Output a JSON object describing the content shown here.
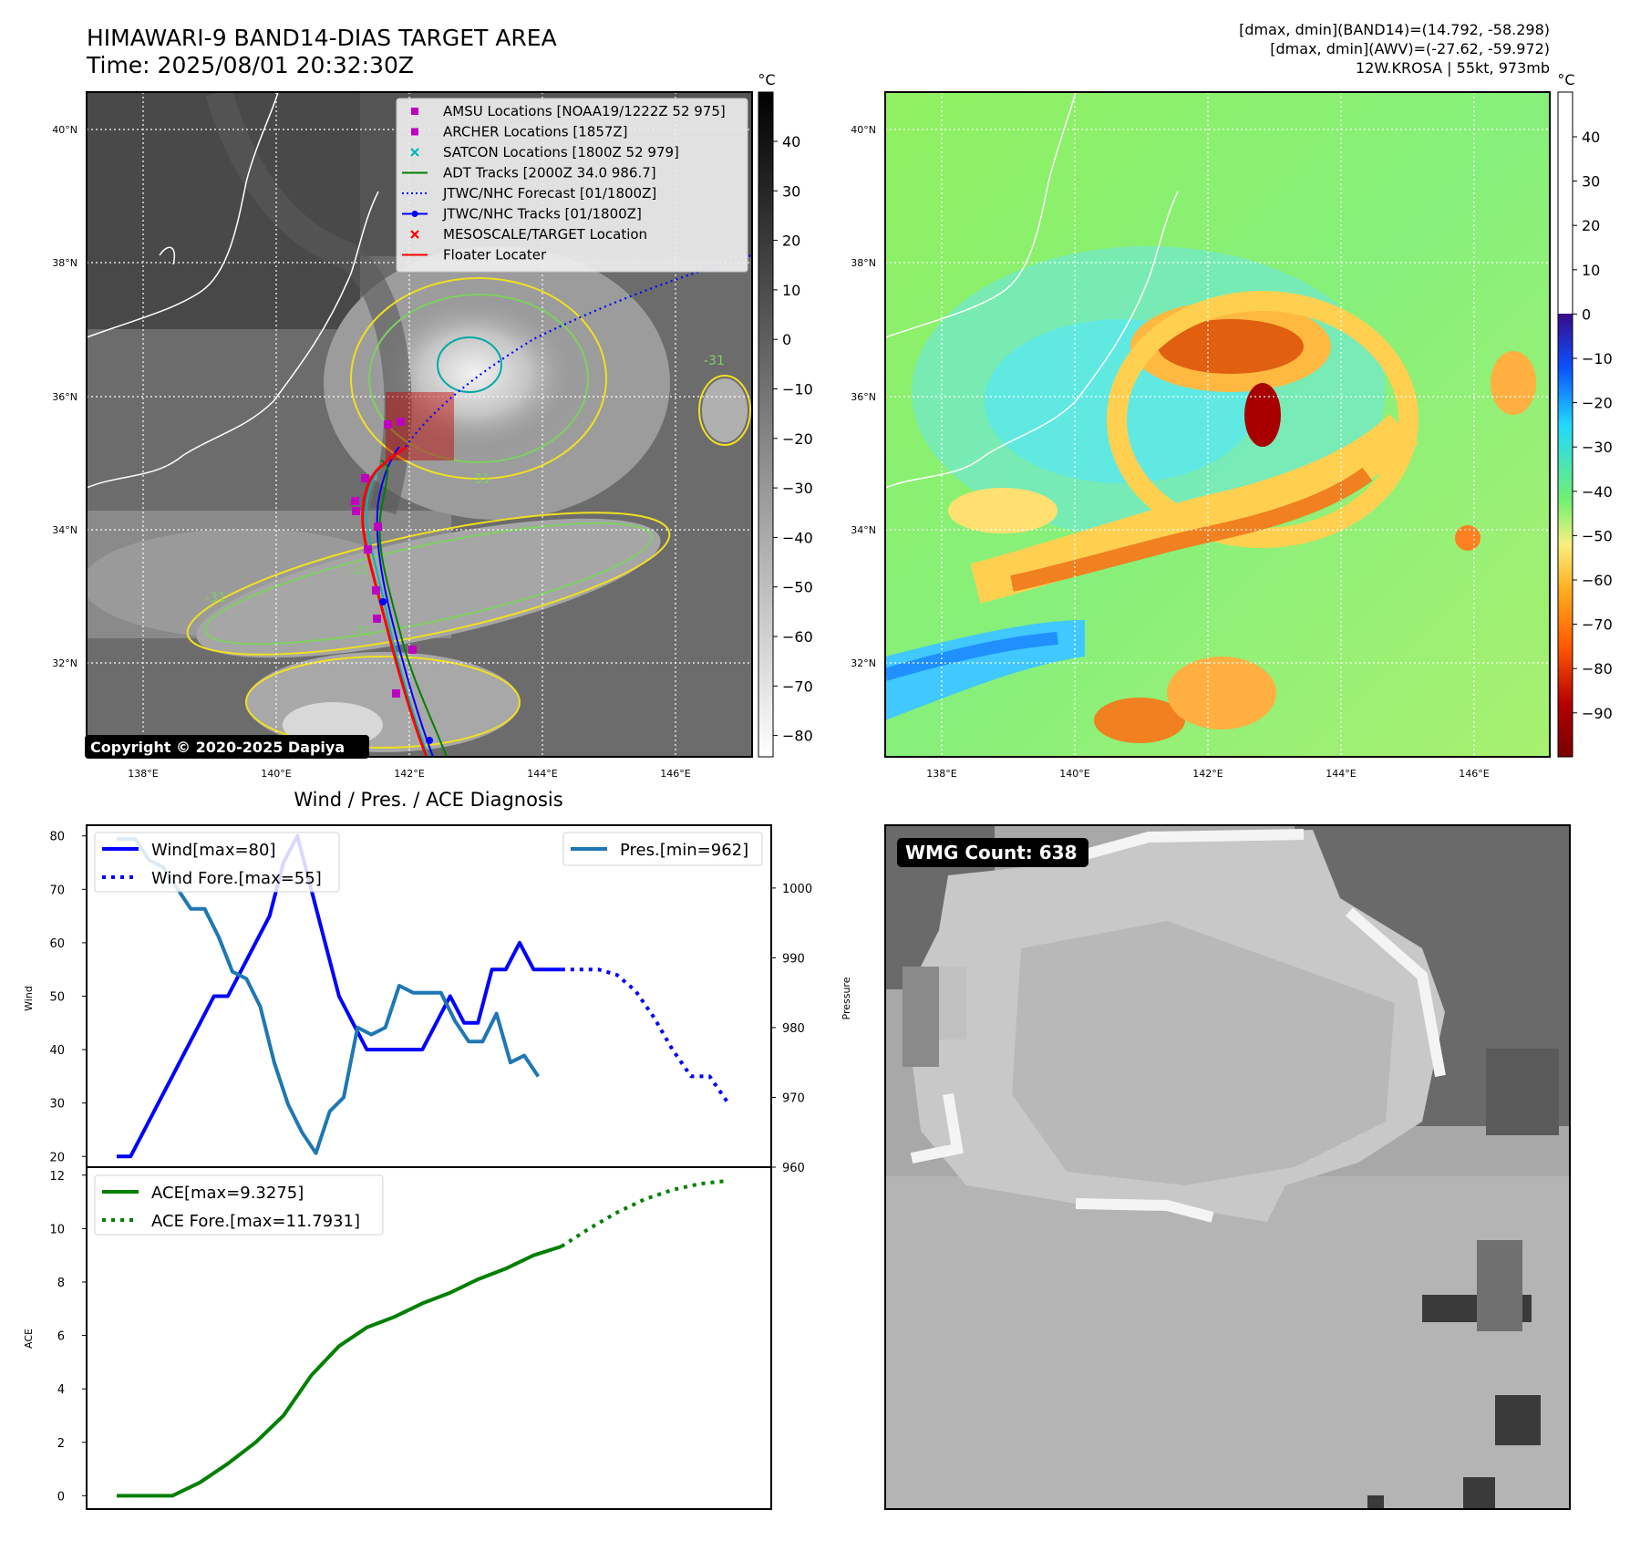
{
  "header": {
    "title": "HIMAWARI-9 BAND14-DIAS TARGET AREA",
    "time": "Time: 2025/08/01 20:32:30Z",
    "stats_band14": "[dmax, dmin](BAND14)=(14.792, -58.298)",
    "stats_awv": "[dmax, dmin](AWV)=(-27.62, -59.972)",
    "storm_info": "12W.KROSA | 55kt, 973mb"
  },
  "map_left": {
    "lat_labels": [
      "40°N",
      "38°N",
      "36°N",
      "34°N",
      "32°N"
    ],
    "lon_labels": [
      "138°E",
      "140°E",
      "142°E",
      "144°E",
      "146°E"
    ],
    "copyright": "Copyright © 2020-2025 Dapiya",
    "contour_labels": [
      "-31",
      "-31",
      "-31",
      "-31",
      "-31"
    ],
    "colorbar": {
      "unit": "°C",
      "ticks": [
        "40",
        "30",
        "20",
        "10",
        "0",
        "−10",
        "−20",
        "−30",
        "−40",
        "−50",
        "−60",
        "−70",
        "−80"
      ]
    },
    "legend": [
      {
        "label": "AMSU Locations [NOAA19/1222Z 52 975]",
        "marker": "square",
        "color": "#c000c0"
      },
      {
        "label": "ARCHER Locations [1857Z]",
        "marker": "square",
        "color": "#c000c0"
      },
      {
        "label": "SATCON Locations [1800Z 52 979]",
        "marker": "x",
        "color": "#00b8b8"
      },
      {
        "label": "ADT Tracks [2000Z 34.0 986.7]",
        "marker": "line",
        "color": "#008000"
      },
      {
        "label": "JTWC/NHC Forecast [01/1800Z]",
        "marker": "dotted",
        "color": "#0000ff"
      },
      {
        "label": "JTWC/NHC Tracks [01/1800Z]",
        "marker": "line-dot",
        "color": "#0000ff"
      },
      {
        "label": "MESOSCALE/TARGET Location",
        "marker": "x",
        "color": "#ff0000"
      },
      {
        "label": "Floater Locater",
        "marker": "line",
        "color": "#ff0000"
      }
    ]
  },
  "map_right": {
    "lat_labels": [
      "40°N",
      "38°N",
      "36°N",
      "34°N",
      "32°N"
    ],
    "lon_labels": [
      "138°E",
      "140°E",
      "142°E",
      "144°E",
      "146°E"
    ],
    "colorbar": {
      "unit": "°C",
      "ticks": [
        "40",
        "30",
        "20",
        "10",
        "0",
        "−10",
        "−20",
        "−30",
        "−40",
        "−50",
        "−60",
        "−70",
        "−80",
        "−90"
      ]
    }
  },
  "wmg": {
    "label": "WMG Count: 638"
  },
  "chart_data": [
    {
      "type": "line",
      "title": "Wind / Pres. / ACE Diagnosis",
      "ylabel": "Wind",
      "ylim": [
        18,
        82
      ],
      "yticks": [
        20,
        30,
        40,
        50,
        60,
        70,
        80
      ],
      "y2label": "Pressure",
      "y2lim": [
        960,
        1009
      ],
      "y2ticks": [
        960,
        970,
        980,
        990,
        1000
      ],
      "series": [
        {
          "name": "Wind[max=80]",
          "axis": "left",
          "style": "solid",
          "color": "#0000ff",
          "x": [
            0,
            3,
            6,
            9,
            12,
            15,
            18,
            21,
            24,
            27,
            30,
            33,
            36,
            39,
            42,
            45,
            48,
            51,
            54,
            57,
            60,
            63,
            66,
            69,
            72,
            75,
            78,
            81,
            84,
            87,
            90,
            93,
            96
          ],
          "values": [
            20,
            20,
            25,
            30,
            35,
            40,
            45,
            50,
            50,
            55,
            60,
            65,
            75,
            80,
            70,
            60,
            50,
            45,
            40,
            40,
            40,
            40,
            40,
            45,
            50,
            45,
            45,
            55,
            55,
            60,
            55,
            55,
            55
          ]
        },
        {
          "name": "Wind Fore.[max=55]",
          "axis": "left",
          "style": "dotted",
          "color": "#0000ff",
          "x": [
            96,
            100,
            104,
            108,
            112,
            116,
            120,
            124,
            128,
            132
          ],
          "values": [
            55,
            55,
            55,
            54,
            51,
            46,
            40,
            35,
            35,
            30
          ]
        },
        {
          "name": "Pres.[min=962]",
          "axis": "right",
          "style": "solid",
          "color": "#1f77b4",
          "x": [
            0,
            4,
            7,
            10,
            13,
            16,
            19,
            22,
            25,
            28,
            31,
            34,
            37,
            40,
            43,
            46,
            49,
            52,
            55,
            58,
            61,
            64,
            67,
            70,
            73,
            76,
            79,
            82,
            85,
            88,
            91
          ],
          "values": [
            1007,
            1007,
            1004,
            1003,
            1000,
            997,
            997,
            993,
            988,
            987,
            983,
            975,
            969,
            965,
            962,
            968,
            970,
            980,
            979,
            980,
            986,
            985,
            985,
            985,
            981,
            978,
            978,
            982,
            975,
            976,
            973
          ]
        }
      ]
    },
    {
      "type": "line",
      "ylabel": "ACE",
      "ylim": [
        -0.5,
        12.3
      ],
      "yticks": [
        0,
        2,
        4,
        6,
        8,
        10,
        12
      ],
      "series": [
        {
          "name": "ACE[max=9.3275]",
          "style": "solid",
          "color": "#008000",
          "x": [
            0,
            6,
            12,
            18,
            24,
            30,
            36,
            42,
            48,
            54,
            60,
            66,
            72,
            78,
            84,
            90,
            96
          ],
          "values": [
            0,
            0,
            0,
            0.5,
            1.2,
            2.0,
            3.0,
            4.5,
            5.6,
            6.3,
            6.7,
            7.2,
            7.6,
            8.1,
            8.5,
            9.0,
            9.33
          ]
        },
        {
          "name": "ACE Fore.[max=11.7931]",
          "style": "dotted",
          "color": "#008000",
          "x": [
            96,
            102,
            108,
            114,
            120,
            126,
            132
          ],
          "values": [
            9.33,
            10.0,
            10.6,
            11.1,
            11.45,
            11.68,
            11.79
          ]
        }
      ]
    }
  ]
}
